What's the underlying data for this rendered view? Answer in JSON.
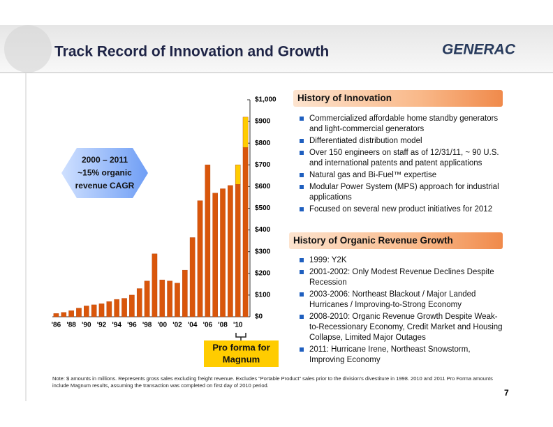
{
  "title": "Track Record of Innovation and Growth",
  "logo": "GENERAC",
  "innovation": {
    "heading": "History of Innovation",
    "items": [
      "Commercialized affordable home standby generators and light-commercial generators",
      "Differentiated distribution model",
      "Over 150 engineers on staff as of 12/31/11, ~ 90 U.S. and international patents and patent applications",
      "Natural gas and Bi-Fuel™ expertise",
      "Modular Power System (MPS) approach for industrial applications",
      "Focused on several new product initiatives for 2012"
    ]
  },
  "growth": {
    "heading": "History of Organic Revenue Growth",
    "items": [
      "1999: Y2K",
      "2001-2002: Only Modest Revenue Declines Despite Recession",
      "2003-2006: Northeast Blackout / Major Landed Hurricanes / Improving-to-Strong Economy",
      "2008-2010: Organic Revenue Growth Despite Weak-to-Recessionary Economy, Credit Market and Housing Collapse, Limited Major Outages",
      "2011: Hurricane Irene, Northeast Snowstorm, Improving Economy"
    ]
  },
  "footnote": "Note: $ amounts in millions.  Represents gross sales excluding freight revenue.  Excludes “Portable Product” sales prior to the division’s divestiture in 1998. 2010 and 2011 Pro Forma amounts include Magnum results, assuming the transaction was completed on first day of 2010 period.",
  "page_number": "7",
  "chart_data": {
    "type": "bar",
    "stacked": true,
    "categories": [
      "'86",
      null,
      "'88",
      null,
      "'90",
      null,
      "'92",
      null,
      "'94",
      null,
      "'96",
      null,
      "'98",
      null,
      "'00",
      null,
      "'02",
      null,
      "'04",
      null,
      "'06",
      null,
      "'08",
      null,
      "'10",
      null
    ],
    "series": [
      {
        "color": "#d9560b",
        "values": [
          15,
          20,
          28,
          40,
          50,
          55,
          60,
          70,
          80,
          85,
          100,
          130,
          165,
          290,
          170,
          165,
          155,
          215,
          365,
          535,
          700,
          570,
          590,
          605,
          610,
          780
        ]
      },
      {
        "color": "#ffcc00",
        "values": [
          null,
          null,
          null,
          null,
          null,
          null,
          null,
          null,
          null,
          null,
          null,
          null,
          null,
          null,
          null,
          null,
          null,
          null,
          null,
          null,
          null,
          null,
          null,
          null,
          90,
          140
        ]
      }
    ],
    "ylim": [
      0,
      1000
    ],
    "yticks": [
      {
        "value": 0,
        "label": "$0"
      },
      {
        "value": 100,
        "label": "$100"
      },
      {
        "value": 200,
        "label": "$200"
      },
      {
        "value": 300,
        "label": "$300"
      },
      {
        "value": 400,
        "label": "$400"
      },
      {
        "value": 500,
        "label": "$500"
      },
      {
        "value": 600,
        "label": "$600"
      },
      {
        "value": 700,
        "label": "$700"
      },
      {
        "value": 800,
        "label": "$800"
      },
      {
        "value": 900,
        "label": "$900"
      },
      {
        "value": 1000,
        "label": "$1,000"
      }
    ],
    "callout": [
      "2000 – 2011",
      "~15% organic",
      "revenue CAGR"
    ],
    "pro_forma_label": [
      "Pro forma for",
      "Magnum"
    ]
  }
}
